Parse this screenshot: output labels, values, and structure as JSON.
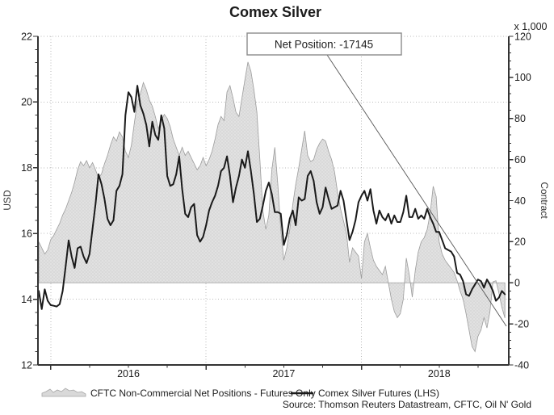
{
  "title": "Comex Silver",
  "left_axis": {
    "label": "USD",
    "min": 12,
    "max": 22,
    "major_ticks": [
      22,
      20,
      18,
      16,
      14,
      12
    ],
    "minor_step": 0.4
  },
  "right_axis": {
    "label": "Contract",
    "unit": "x 1,000",
    "min": -40,
    "max": 120,
    "major_ticks": [
      120,
      100,
      80,
      60,
      40,
      20,
      0,
      -20,
      -40
    ],
    "minor_step": 4
  },
  "x_axis": {
    "years": [
      "2016",
      "2017",
      "2018"
    ]
  },
  "annotation": {
    "text": "Net Position: -17145",
    "value": -17145
  },
  "legend": {
    "area_label": "CFTC Non-Commercial Net Positions - Futures Only",
    "line_label": "Comex Silver Futures (LHS)"
  },
  "source": "Source: Thomson Reuters Datastream, CFTC, Oil N' Gold",
  "colors": {
    "area_fill": "#d9d9d9",
    "area_edge": "#9c9c9c",
    "line": "#1a1a1a",
    "grid": "#b8b8b8",
    "axis": "#333333",
    "annotation_border": "#8c8c8c"
  },
  "chart_data": {
    "type": "area+line combo, weekly time series",
    "x_start": "2015-12",
    "x_end": "2018-12",
    "grid": "dotted, horizontal at left-axis majors, vertical at year starts",
    "legend_position": "bottom",
    "year_start_week_indices": [
      4,
      56,
      108
    ],
    "year_label_week_indices": [
      30,
      82,
      134
    ],
    "series": [
      {
        "name": "CFTC Non-Commercial Net Positions - Futures Only",
        "type": "area",
        "axis": "right",
        "unit": "thousand contracts",
        "baseline": 0,
        "values": [
          20,
          17,
          14,
          16,
          21,
          23,
          26,
          29,
          33,
          36,
          40,
          44,
          49,
          55,
          59,
          57,
          59.5,
          56,
          58.5,
          55,
          51,
          53,
          58,
          62,
          67,
          71,
          69,
          73.5,
          71,
          64,
          61,
          67,
          78,
          88,
          92,
          97.5,
          94,
          89,
          86,
          81,
          75,
          79,
          82,
          80,
          76,
          70,
          66,
          62,
          66,
          62,
          64,
          61,
          58,
          55,
          57,
          61,
          57,
          60,
          64,
          70,
          77,
          81,
          79,
          93,
          96,
          90,
          83,
          81,
          90,
          99,
          107.5,
          103,
          94,
          83,
          60,
          35,
          26,
          33,
          55,
          66,
          48,
          26,
          11,
          17,
          26,
          38,
          48,
          56,
          65,
          74,
          62,
          59,
          60,
          65,
          68,
          70,
          69,
          64,
          60,
          54,
          44,
          36,
          30,
          24,
          10,
          17,
          15,
          13,
          2,
          20,
          24,
          17,
          11,
          8,
          6,
          4,
          8,
          0,
          -8,
          -14,
          -17,
          -15,
          -8,
          12,
          4,
          -7,
          6,
          15,
          20,
          22,
          26,
          34,
          47,
          42,
          20,
          14,
          11,
          9,
          7,
          5,
          1,
          -4,
          -8,
          -15,
          -23,
          -31,
          -33.5,
          -26,
          -23,
          -17,
          -22,
          -14,
          0.5,
          1,
          -5,
          -12,
          -17.145
        ]
      },
      {
        "name": "Comex Silver Futures (LHS)",
        "type": "line",
        "axis": "left",
        "unit": "USD",
        "values": [
          14.25,
          13.7,
          14.3,
          13.95,
          13.82,
          13.8,
          13.78,
          13.85,
          14.25,
          15.0,
          15.79,
          15.3,
          14.95,
          15.55,
          15.6,
          15.3,
          15.1,
          15.38,
          16.15,
          16.9,
          17.8,
          17.5,
          17.05,
          16.45,
          16.25,
          16.4,
          17.3,
          17.45,
          17.8,
          19.6,
          20.3,
          20.15,
          19.7,
          20.5,
          19.9,
          19.65,
          19.3,
          18.65,
          19.4,
          19.0,
          18.85,
          19.6,
          19.2,
          17.75,
          17.45,
          17.5,
          17.8,
          18.35,
          17.35,
          16.6,
          16.5,
          16.8,
          16.9,
          15.95,
          15.75,
          15.9,
          16.25,
          16.7,
          16.95,
          17.15,
          17.45,
          17.9,
          18.0,
          18.35,
          17.75,
          16.95,
          17.4,
          17.75,
          18.25,
          18.0,
          18.5,
          17.9,
          17.2,
          16.35,
          16.45,
          16.85,
          17.3,
          17.55,
          17.2,
          16.65,
          16.65,
          16.6,
          15.65,
          15.95,
          16.45,
          16.7,
          16.25,
          17.1,
          17.0,
          17.05,
          17.75,
          17.9,
          17.6,
          16.95,
          16.6,
          16.8,
          17.4,
          17.05,
          16.75,
          16.8,
          16.85,
          17.3,
          17.0,
          16.4,
          15.8,
          16.05,
          16.4,
          16.95,
          17.15,
          17.3,
          17.0,
          17.35,
          16.7,
          16.3,
          16.7,
          16.5,
          16.4,
          16.6,
          16.3,
          16.55,
          16.35,
          16.35,
          16.65,
          17.15,
          16.5,
          16.5,
          16.75,
          16.45,
          16.55,
          16.45,
          16.75,
          16.5,
          16.3,
          16.05,
          16.05,
          15.8,
          15.55,
          15.5,
          15.45,
          15.3,
          14.8,
          14.75,
          14.55,
          14.15,
          14.1,
          14.3,
          14.45,
          14.6,
          14.55,
          14.35,
          14.6,
          14.45,
          14.25,
          13.95,
          14.05,
          14.25,
          14.15
        ]
      }
    ]
  }
}
